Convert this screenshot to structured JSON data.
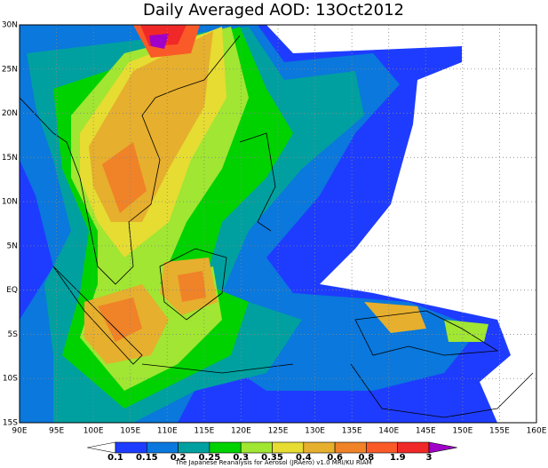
{
  "title": "Daily Averaged AOD: 13Oct2012",
  "map": {
    "xlim": [
      90,
      160
    ],
    "ylim": [
      -15,
      30
    ],
    "xticks": [
      {
        "value": 90,
        "label": "90E"
      },
      {
        "value": 95,
        "label": "95E"
      },
      {
        "value": 100,
        "label": "100E"
      },
      {
        "value": 105,
        "label": "105E"
      },
      {
        "value": 110,
        "label": "110E"
      },
      {
        "value": 115,
        "label": "115E"
      },
      {
        "value": 120,
        "label": "120E"
      },
      {
        "value": 125,
        "label": "125E"
      },
      {
        "value": 130,
        "label": "130E"
      },
      {
        "value": 135,
        "label": "135E"
      },
      {
        "value": 140,
        "label": "140E"
      },
      {
        "value": 145,
        "label": "145E"
      },
      {
        "value": 150,
        "label": "150E"
      },
      {
        "value": 155,
        "label": "155E"
      },
      {
        "value": 160,
        "label": "160E"
      }
    ],
    "yticks": [
      {
        "value": 30,
        "label": "30N"
      },
      {
        "value": 25,
        "label": "25N"
      },
      {
        "value": 20,
        "label": "20N"
      },
      {
        "value": 15,
        "label": "15N"
      },
      {
        "value": 10,
        "label": "10N"
      },
      {
        "value": 5,
        "label": "5N"
      },
      {
        "value": 0,
        "label": "EQ"
      },
      {
        "value": -5,
        "label": "5S"
      },
      {
        "value": -10,
        "label": "10S"
      },
      {
        "value": -15,
        "label": "15S"
      }
    ],
    "grid": true
  },
  "colorbar": {
    "levels": [
      0.1,
      0.15,
      0.2,
      0.25,
      0.3,
      0.35,
      0.4,
      0.6,
      0.8,
      1.9,
      3
    ],
    "colors": [
      "#1e3cff",
      "#0a78dc",
      "#00a0a0",
      "#00d200",
      "#a0e632",
      "#e6dc32",
      "#e6af2d",
      "#f08228",
      "#fa5a28",
      "#f02828"
    ],
    "under": "#ffffff",
    "over": "#a000c8"
  },
  "credit": "The Japanese Reanalysis for Aerosol (JRAero) v1.0 MRI/KU RIAM"
}
